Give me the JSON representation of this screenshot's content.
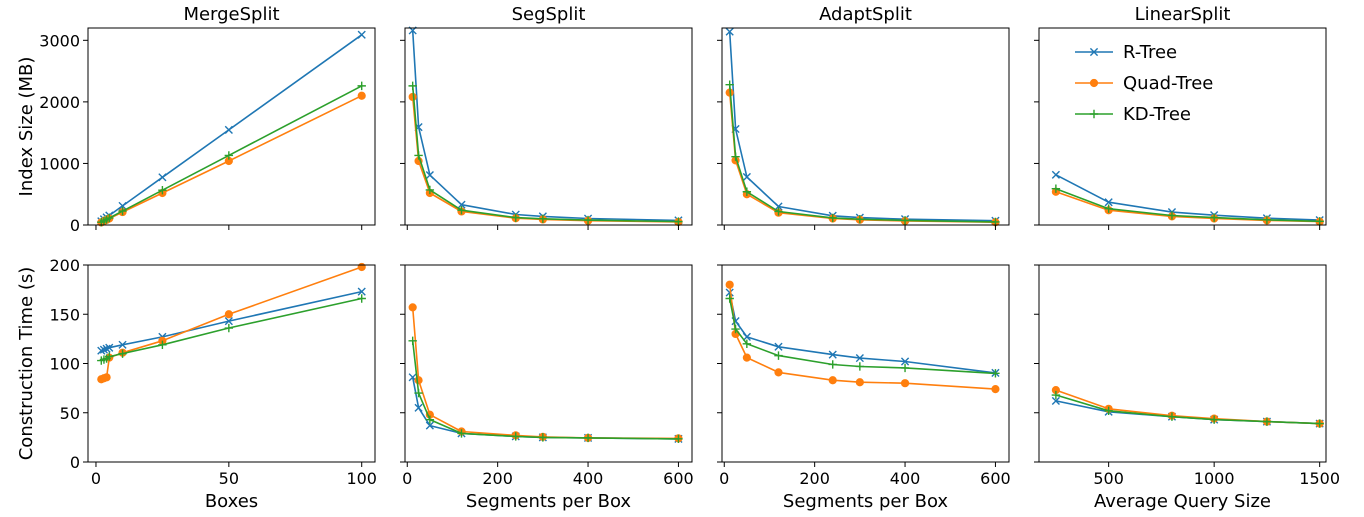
{
  "figure": {
    "columns": [
      "MergeSplit",
      "SegSplit",
      "AdaptSplit",
      "LinearSplit"
    ],
    "x_labels": [
      "Boxes",
      "Segments per Box",
      "Segments per Box",
      "Average Query Size"
    ],
    "row_labels": [
      "Index Size (MB)",
      "Construction Time (s)"
    ],
    "legend": [
      "R-Tree",
      "Quad-Tree",
      "KD-Tree"
    ],
    "colors": {
      "R-Tree": "#1f77b4",
      "Quad-Tree": "#ff7f0e",
      "KD-Tree": "#2ca02c"
    },
    "markers": {
      "R-Tree": "x",
      "Quad-Tree": "circle",
      "KD-Tree": "plus"
    }
  },
  "chart_data": [
    {
      "type": "line",
      "title": "MergeSplit",
      "xlabel": "",
      "ylabel": "Index Size (MB)",
      "xlim": [
        -3,
        105
      ],
      "ylim": [
        0,
        3200
      ],
      "xticks": [
        0,
        50,
        100
      ],
      "yticks": [
        0,
        1000,
        2000,
        3000
      ],
      "x": [
        2,
        3,
        4,
        5,
        10,
        25,
        50,
        100
      ],
      "series": [
        {
          "name": "R-Tree",
          "values": [
            62,
            93,
            124,
            155,
            310,
            775,
            1545,
            3090
          ]
        },
        {
          "name": "Quad-Tree",
          "values": [
            42,
            63,
            84,
            105,
            210,
            520,
            1040,
            2100
          ]
        },
        {
          "name": "KD-Tree",
          "values": [
            45,
            68,
            90,
            113,
            226,
            565,
            1130,
            2260
          ]
        }
      ]
    },
    {
      "type": "line",
      "title": "SegSplit",
      "xlabel": "",
      "ylabel": "",
      "xlim": [
        -5,
        630
      ],
      "ylim": [
        0,
        3200
      ],
      "xticks": [
        0,
        200,
        400,
        600
      ],
      "yticks": [
        0,
        1000,
        2000,
        3000
      ],
      "x": [
        12,
        25,
        50,
        120,
        240,
        300,
        400,
        600
      ],
      "series": [
        {
          "name": "R-Tree",
          "values": [
            3160,
            1590,
            810,
            330,
            170,
            140,
            105,
            75
          ]
        },
        {
          "name": "Quad-Tree",
          "values": [
            2080,
            1040,
            520,
            220,
            110,
            90,
            70,
            50
          ]
        },
        {
          "name": "KD-Tree",
          "values": [
            2260,
            1130,
            570,
            240,
            120,
            100,
            80,
            55
          ]
        }
      ]
    },
    {
      "type": "line",
      "title": "AdaptSplit",
      "xlabel": "",
      "ylabel": "",
      "xlim": [
        -5,
        630
      ],
      "ylim": [
        0,
        3200
      ],
      "xticks": [
        0,
        200,
        400,
        600
      ],
      "yticks": [
        0,
        1000,
        2000,
        3000
      ],
      "x": [
        12,
        25,
        50,
        120,
        240,
        300,
        400,
        600
      ],
      "series": [
        {
          "name": "R-Tree",
          "values": [
            3140,
            1560,
            780,
            300,
            150,
            120,
            95,
            70
          ]
        },
        {
          "name": "Quad-Tree",
          "values": [
            2150,
            1050,
            500,
            200,
            105,
            85,
            65,
            45
          ]
        },
        {
          "name": "KD-Tree",
          "values": [
            2280,
            1110,
            540,
            220,
            115,
            95,
            75,
            50
          ]
        }
      ]
    },
    {
      "type": "line",
      "title": "LinearSplit",
      "xlabel": "",
      "ylabel": "",
      "xlim": [
        170,
        1530
      ],
      "ylim": [
        0,
        3200
      ],
      "xticks": [
        500,
        1000,
        1500
      ],
      "yticks": [
        0,
        1000,
        2000,
        3000
      ],
      "x": [
        250,
        500,
        800,
        1000,
        1250,
        1500
      ],
      "series": [
        {
          "name": "R-Tree",
          "values": [
            815,
            370,
            210,
            160,
            110,
            80
          ]
        },
        {
          "name": "Quad-Tree",
          "values": [
            540,
            240,
            140,
            105,
            75,
            55
          ]
        },
        {
          "name": "KD-Tree",
          "values": [
            590,
            265,
            155,
            120,
            85,
            60
          ]
        }
      ]
    },
    {
      "type": "line",
      "title": "",
      "xlabel": "Boxes",
      "ylabel": "Construction Time (s)",
      "xlim": [
        -3,
        105
      ],
      "ylim": [
        0,
        200
      ],
      "xticks": [
        0,
        50,
        100
      ],
      "yticks": [
        0,
        50,
        100,
        150,
        200
      ],
      "x": [
        2,
        3,
        4,
        5,
        10,
        25,
        50,
        100
      ],
      "series": [
        {
          "name": "R-Tree",
          "values": [
            113,
            114,
            115,
            116,
            119,
            127,
            143,
            173
          ]
        },
        {
          "name": "Quad-Tree",
          "values": [
            84,
            85,
            86,
            106,
            111,
            123,
            150,
            198
          ]
        },
        {
          "name": "KD-Tree",
          "values": [
            103,
            104,
            105,
            107,
            110,
            119,
            136,
            166
          ]
        }
      ]
    },
    {
      "type": "line",
      "title": "",
      "xlabel": "Segments per Box",
      "ylabel": "",
      "xlim": [
        -5,
        630
      ],
      "ylim": [
        0,
        200
      ],
      "xticks": [
        0,
        200,
        400,
        600
      ],
      "yticks": [
        0,
        50,
        100,
        150,
        200
      ],
      "x": [
        12,
        25,
        50,
        120,
        240,
        300,
        400,
        600
      ],
      "series": [
        {
          "name": "R-Tree",
          "values": [
            86,
            55,
            37,
            29,
            26,
            25,
            24.5,
            23.5
          ]
        },
        {
          "name": "Quad-Tree",
          "values": [
            157,
            83,
            48,
            31,
            27,
            25.5,
            24.5,
            24
          ]
        },
        {
          "name": "KD-Tree",
          "values": [
            123,
            70,
            43,
            29,
            26,
            25,
            24.5,
            23.5
          ]
        }
      ]
    },
    {
      "type": "line",
      "title": "",
      "xlabel": "Segments per Box",
      "ylabel": "",
      "xlim": [
        -5,
        630
      ],
      "ylim": [
        0,
        200
      ],
      "xticks": [
        0,
        200,
        400,
        600
      ],
      "yticks": [
        0,
        50,
        100,
        150,
        200
      ],
      "x": [
        12,
        25,
        50,
        120,
        240,
        300,
        400,
        600
      ],
      "series": [
        {
          "name": "R-Tree",
          "values": [
            172,
            143,
            127,
            117,
            109,
            105.5,
            102,
            90.5
          ]
        },
        {
          "name": "Quad-Tree",
          "values": [
            180,
            130,
            106,
            91,
            83,
            81,
            80,
            74
          ]
        },
        {
          "name": "KD-Tree",
          "values": [
            166,
            135,
            120,
            108,
            99,
            97,
            95.5,
            90
          ]
        }
      ]
    },
    {
      "type": "line",
      "title": "",
      "xlabel": "Average Query Size",
      "ylabel": "",
      "xlim": [
        170,
        1530
      ],
      "ylim": [
        0,
        200
      ],
      "xticks": [
        500,
        1000,
        1500
      ],
      "yticks": [
        0,
        50,
        100,
        150,
        200
      ],
      "x": [
        250,
        500,
        800,
        1000,
        1250,
        1500
      ],
      "series": [
        {
          "name": "R-Tree",
          "values": [
            62,
            51,
            46,
            43,
            41,
            39
          ]
        },
        {
          "name": "Quad-Tree",
          "values": [
            73,
            54,
            47,
            44,
            41,
            39
          ]
        },
        {
          "name": "KD-Tree",
          "values": [
            68,
            52,
            46,
            43,
            41,
            39
          ]
        }
      ]
    }
  ]
}
